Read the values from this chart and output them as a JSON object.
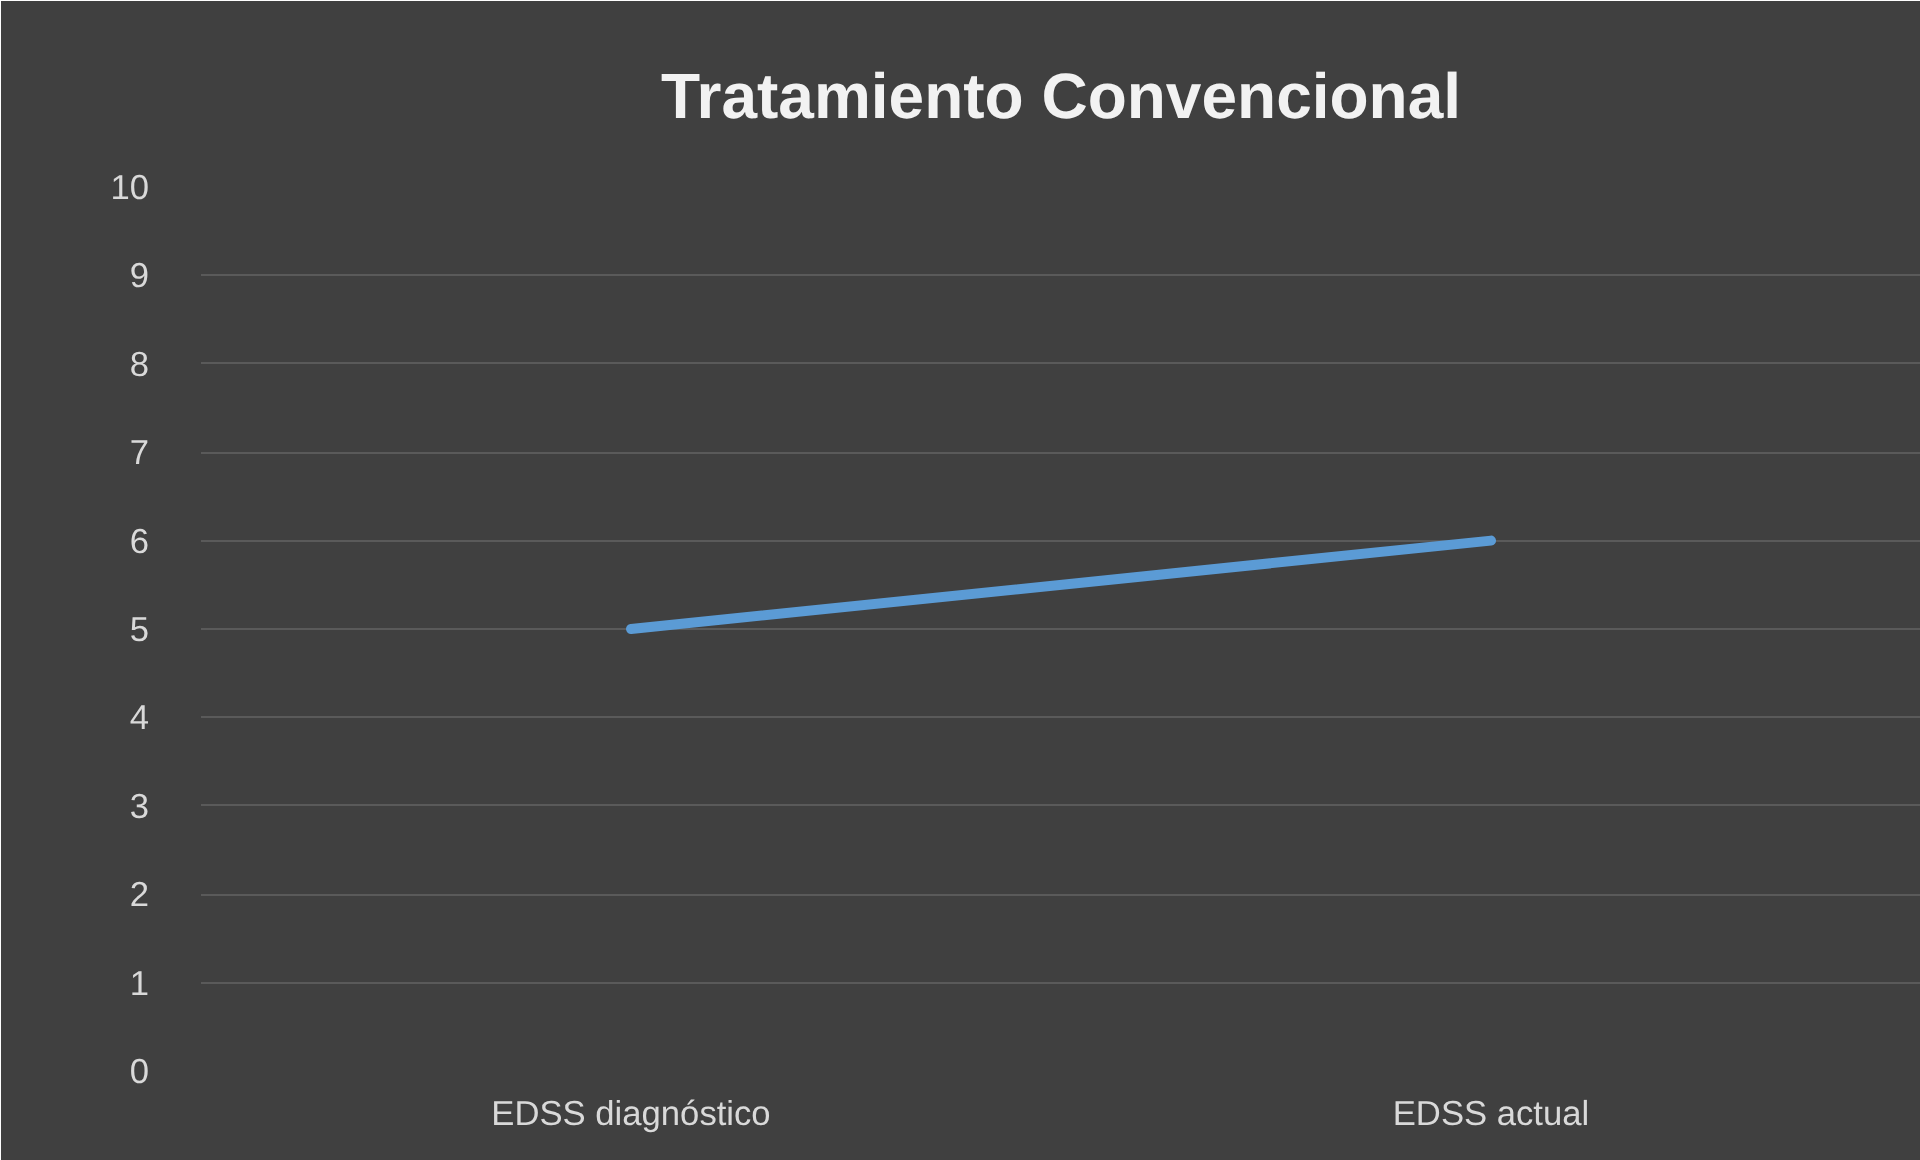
{
  "chart_data": {
    "type": "line",
    "title": "Tratamiento Convencional",
    "categories": [
      "EDSS diagnóstico",
      "EDSS actual"
    ],
    "series": [
      {
        "color": "#5b9bd5",
        "values": [
          5,
          6
        ]
      }
    ],
    "ylim": [
      0,
      10
    ],
    "yticks": [
      0,
      1,
      2,
      3,
      4,
      5,
      6,
      7,
      8,
      9,
      10
    ],
    "grid": "y",
    "marker": "none",
    "line_style": "solid"
  }
}
